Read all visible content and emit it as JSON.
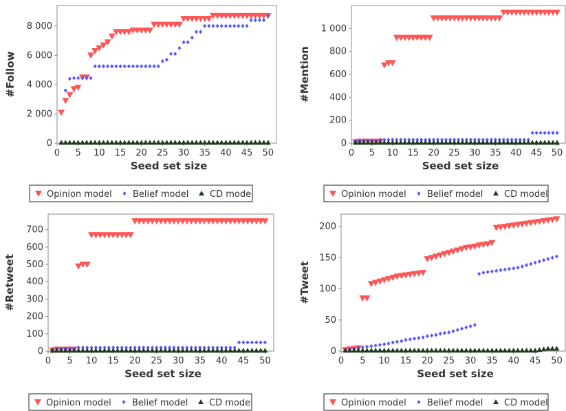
{
  "colors": {
    "opinion": "#ff5555",
    "belief": "#5555ff",
    "cd": "#1e3a1e"
  },
  "legend": [
    {
      "key": "opinion",
      "label": "Opinion model",
      "marker": "triangle-down"
    },
    {
      "key": "belief",
      "label": "Belief model",
      "marker": "diamond"
    },
    {
      "key": "cd",
      "label": "CD model",
      "marker": "triangle-up"
    }
  ],
  "chart_data": [
    {
      "type": "scatter",
      "xlabel": "Seed set size",
      "ylabel": "#Follow",
      "xlim": [
        0,
        52
      ],
      "ylim": [
        0,
        9400
      ],
      "xticks": [
        0,
        5,
        10,
        15,
        20,
        25,
        30,
        35,
        40,
        45,
        50
      ],
      "xtick_labels": [
        "0",
        "5",
        "10",
        "15",
        "20",
        "25",
        "30",
        "35",
        "40",
        "45",
        "50"
      ],
      "yticks": [
        0,
        2000,
        4000,
        6000,
        8000
      ],
      "ytick_labels": [
        "0",
        "2 000",
        "4 000",
        "6 000",
        "8 000"
      ],
      "grid": false,
      "legend_position": "bottom",
      "series": [
        {
          "name": "Opinion model",
          "key": "opinion",
          "values": [
            2100,
            2900,
            3300,
            3700,
            3800,
            4500,
            4500,
            6000,
            6300,
            6500,
            6700,
            6900,
            7300,
            7600,
            7600,
            7600,
            7600,
            7700,
            7700,
            7700,
            7700,
            7700,
            8100,
            8100,
            8100,
            8100,
            8100,
            8100,
            8100,
            8500,
            8500,
            8500,
            8500,
            8500,
            8500,
            8500,
            8700,
            8700,
            8700,
            8700,
            8700,
            8700,
            8700,
            8700,
            8700,
            8700,
            8700,
            8700,
            8700,
            8700
          ]
        },
        {
          "name": "Belief model",
          "key": "belief",
          "values": [
            null,
            3600,
            4400,
            4450,
            4450,
            4450,
            4450,
            4450,
            5250,
            5250,
            5250,
            5250,
            5250,
            5250,
            5250,
            5250,
            5250,
            5250,
            5250,
            5250,
            5250,
            5250,
            5250,
            5250,
            5600,
            5700,
            6100,
            6100,
            6500,
            6900,
            6900,
            7200,
            7600,
            7600,
            8000,
            8000,
            8000,
            8000,
            8000,
            8000,
            8000,
            8000,
            8000,
            8000,
            8000,
            8400,
            8400,
            8400,
            8400,
            8700
          ]
        },
        {
          "name": "CD model",
          "key": "cd",
          "values": [
            40,
            40,
            40,
            40,
            40,
            40,
            40,
            40,
            40,
            40,
            40,
            40,
            40,
            40,
            40,
            40,
            40,
            40,
            40,
            40,
            40,
            40,
            40,
            40,
            40,
            40,
            40,
            40,
            40,
            40,
            40,
            40,
            40,
            40,
            40,
            40,
            40,
            40,
            40,
            40,
            40,
            40,
            40,
            40,
            40,
            40,
            40,
            40,
            40,
            40
          ]
        }
      ]
    },
    {
      "type": "scatter",
      "xlabel": "Seed set size",
      "ylabel": "#Mention",
      "xlim": [
        0,
        52
      ],
      "ylim": [
        0,
        1200
      ],
      "xticks": [
        0,
        5,
        10,
        15,
        20,
        25,
        30,
        35,
        40,
        45,
        50
      ],
      "xtick_labels": [
        "0",
        "5",
        "10",
        "15",
        "20",
        "25",
        "30",
        "35",
        "40",
        "45",
        "50"
      ],
      "yticks": [
        0,
        200,
        400,
        600,
        800,
        1000
      ],
      "ytick_labels": [
        "0",
        "200",
        "400",
        "600",
        "800",
        "1 000"
      ],
      "grid": false,
      "legend_position": "bottom",
      "series": [
        {
          "name": "Opinion model",
          "key": "opinion",
          "values": [
            10,
            15,
            15,
            15,
            15,
            15,
            15,
            680,
            700,
            700,
            920,
            920,
            920,
            920,
            920,
            920,
            920,
            920,
            920,
            1090,
            1090,
            1090,
            1090,
            1090,
            1090,
            1090,
            1090,
            1090,
            1090,
            1090,
            1090,
            1090,
            1090,
            1090,
            1090,
            1090,
            1140,
            1140,
            1140,
            1140,
            1140,
            1140,
            1140,
            1140,
            1140,
            1140,
            1140,
            1140,
            1140,
            1140
          ]
        },
        {
          "name": "Belief model",
          "key": "belief",
          "values": [
            20,
            20,
            20,
            20,
            20,
            20,
            30,
            30,
            30,
            30,
            30,
            30,
            30,
            30,
            30,
            30,
            30,
            30,
            30,
            30,
            30,
            30,
            30,
            30,
            30,
            30,
            30,
            30,
            30,
            30,
            30,
            30,
            30,
            30,
            30,
            30,
            30,
            30,
            30,
            30,
            30,
            30,
            30,
            90,
            90,
            90,
            90,
            90,
            90,
            90
          ]
        },
        {
          "name": "CD model",
          "key": "cd",
          "values": [
            5,
            5,
            5,
            5,
            5,
            5,
            5,
            5,
            5,
            5,
            5,
            5,
            5,
            5,
            5,
            5,
            5,
            5,
            5,
            5,
            5,
            5,
            5,
            5,
            5,
            5,
            5,
            5,
            5,
            5,
            5,
            5,
            5,
            5,
            5,
            5,
            5,
            5,
            5,
            5,
            5,
            5,
            5,
            5,
            5,
            5,
            5,
            5,
            5,
            5
          ]
        }
      ]
    },
    {
      "type": "scatter",
      "xlabel": "Seed set size",
      "ylabel": "#Retweet",
      "xlim": [
        0,
        52
      ],
      "ylim": [
        0,
        790
      ],
      "xticks": [
        0,
        5,
        10,
        15,
        20,
        25,
        30,
        35,
        40,
        45,
        50
      ],
      "xtick_labels": [
        "0",
        "5",
        "10",
        "15",
        "20",
        "25",
        "30",
        "35",
        "40",
        "45",
        "50"
      ],
      "yticks": [
        0,
        100,
        200,
        300,
        400,
        500,
        600,
        700
      ],
      "ytick_labels": [
        "0",
        "100",
        "200",
        "300",
        "400",
        "500",
        "600",
        "700"
      ],
      "grid": false,
      "legend_position": "bottom",
      "series": [
        {
          "name": "Opinion model",
          "key": "opinion",
          "values": [
            5,
            10,
            10,
            10,
            10,
            10,
            490,
            500,
            500,
            670,
            670,
            670,
            670,
            670,
            670,
            670,
            670,
            670,
            670,
            750,
            750,
            750,
            750,
            750,
            750,
            750,
            750,
            750,
            750,
            750,
            750,
            750,
            750,
            750,
            750,
            750,
            750,
            750,
            750,
            750,
            750,
            750,
            750,
            750,
            750,
            750,
            750,
            750,
            750,
            750
          ]
        },
        {
          "name": "Belief model",
          "key": "belief",
          "values": [
            10,
            15,
            15,
            15,
            15,
            15,
            20,
            20,
            20,
            20,
            20,
            20,
            20,
            20,
            20,
            20,
            20,
            20,
            20,
            20,
            20,
            20,
            20,
            20,
            20,
            20,
            20,
            20,
            20,
            20,
            20,
            20,
            20,
            20,
            20,
            20,
            20,
            20,
            20,
            20,
            20,
            20,
            20,
            50,
            50,
            50,
            50,
            50,
            50,
            50
          ]
        },
        {
          "name": "CD model",
          "key": "cd",
          "values": [
            3,
            3,
            3,
            3,
            3,
            3,
            3,
            3,
            3,
            3,
            3,
            3,
            3,
            3,
            3,
            3,
            3,
            3,
            3,
            3,
            3,
            3,
            3,
            3,
            3,
            3,
            3,
            3,
            3,
            3,
            3,
            3,
            3,
            3,
            3,
            3,
            3,
            3,
            3,
            3,
            3,
            3,
            3,
            3,
            3,
            3,
            3,
            3,
            3,
            3
          ]
        }
      ]
    },
    {
      "type": "scatter",
      "xlabel": "Seed set size",
      "ylabel": "#Tweet",
      "xlim": [
        0,
        52
      ],
      "ylim": [
        0,
        220
      ],
      "xticks": [
        0,
        5,
        10,
        15,
        20,
        25,
        30,
        35,
        40,
        45,
        50
      ],
      "xtick_labels": [
        "0",
        "5",
        "10",
        "15",
        "20",
        "25",
        "30",
        "35",
        "40",
        "45",
        "50"
      ],
      "yticks": [
        0,
        50,
        100,
        150,
        200
      ],
      "ytick_labels": [
        "0",
        "50",
        "100",
        "150",
        "200"
      ],
      "grid": false,
      "legend_position": "bottom",
      "series": [
        {
          "name": "Opinion model",
          "key": "opinion",
          "values": [
            2,
            3,
            4,
            5,
            85,
            85,
            108,
            110,
            112,
            114,
            116,
            118,
            120,
            121,
            122,
            123,
            124,
            125,
            126,
            148,
            150,
            152,
            154,
            156,
            158,
            160,
            162,
            164,
            166,
            167,
            168,
            170,
            171,
            172,
            174,
            198,
            199,
            200,
            201,
            202,
            203,
            204,
            205,
            206,
            207,
            208,
            209,
            210,
            211,
            212
          ]
        },
        {
          "name": "Belief model",
          "key": "belief",
          "values": [
            2,
            3,
            4,
            5,
            6,
            7,
            8,
            9,
            10,
            11,
            12,
            14,
            15,
            16,
            18,
            19,
            20,
            21,
            22,
            24,
            25,
            26,
            28,
            29,
            30,
            32,
            34,
            36,
            38,
            40,
            42,
            124,
            126,
            127,
            128,
            129,
            130,
            131,
            132,
            133,
            134,
            136,
            138,
            140,
            142,
            144,
            146,
            148,
            150,
            152
          ]
        },
        {
          "name": "CD model",
          "key": "cd",
          "values": [
            1,
            1,
            1,
            1,
            1,
            1,
            1,
            1,
            1,
            1,
            1,
            1,
            1,
            1,
            1,
            1,
            1,
            1,
            1,
            1,
            1,
            1,
            1,
            1,
            1,
            1,
            1,
            1,
            1,
            1,
            1,
            1,
            1,
            1,
            1,
            1,
            1,
            1,
            1,
            1,
            1,
            1,
            1,
            1,
            1,
            2,
            3,
            4,
            4,
            4
          ]
        }
      ]
    }
  ]
}
